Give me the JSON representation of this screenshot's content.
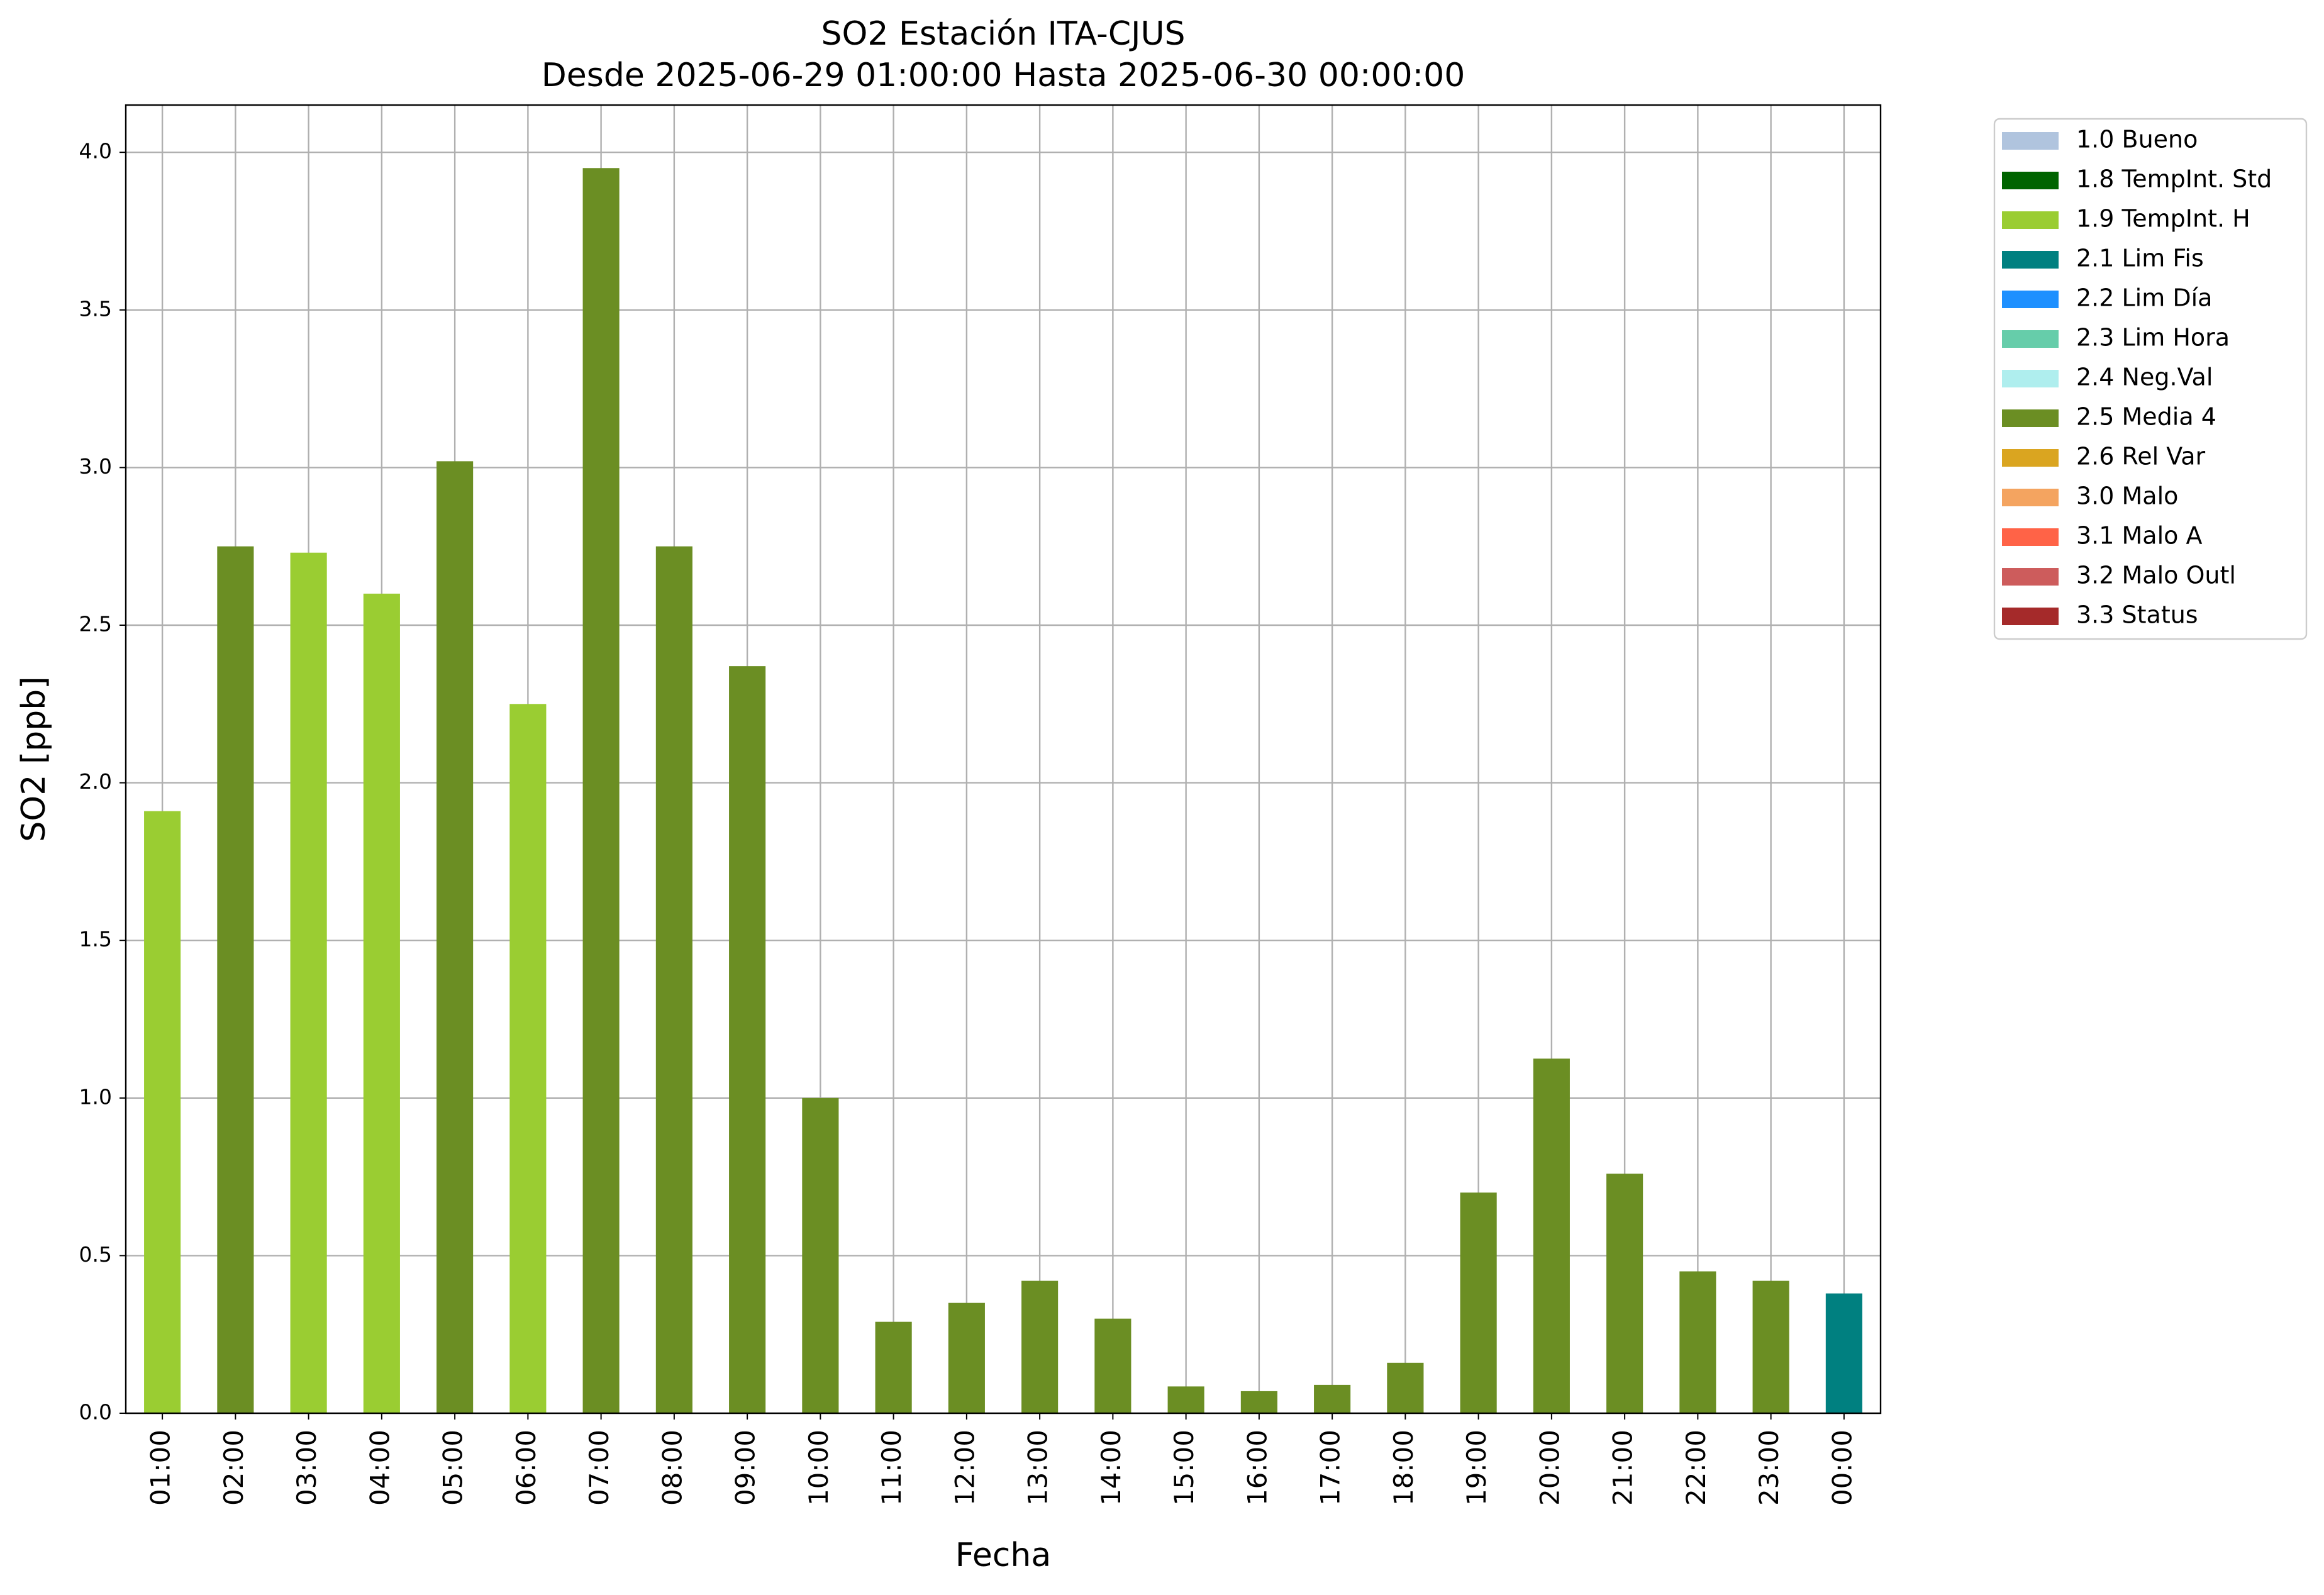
{
  "chart_data": {
    "type": "bar",
    "title": "SO2 Estación ITA-CJUS",
    "subtitle": "Desde 2025-06-29 01:00:00 Hasta 2025-06-30 00:00:00",
    "x_label": "Fecha",
    "y_label": "SO2 [ppb]",
    "categories": [
      "01:00",
      "02:00",
      "03:00",
      "04:00",
      "05:00",
      "06:00",
      "07:00",
      "08:00",
      "09:00",
      "10:00",
      "11:00",
      "12:00",
      "13:00",
      "14:00",
      "15:00",
      "16:00",
      "17:00",
      "18:00",
      "19:00",
      "20:00",
      "21:00",
      "22:00",
      "23:00",
      "00:00"
    ],
    "values": [
      1.91,
      2.75,
      2.73,
      2.6,
      3.02,
      2.25,
      3.95,
      2.75,
      2.37,
      1.0,
      0.29,
      0.35,
      0.42,
      0.3,
      0.085,
      0.07,
      0.09,
      0.16,
      0.7,
      1.125,
      0.76,
      0.45,
      0.42,
      0.38
    ],
    "colors": [
      "#9acd32",
      "#6b8e23",
      "#9acd32",
      "#9acd32",
      "#6b8e23",
      "#9acd32",
      "#6b8e23",
      "#6b8e23",
      "#6b8e23",
      "#6b8e23",
      "#6b8e23",
      "#6b8e23",
      "#6b8e23",
      "#6b8e23",
      "#6b8e23",
      "#6b8e23",
      "#6b8e23",
      "#6b8e23",
      "#6b8e23",
      "#6b8e23",
      "#6b8e23",
      "#6b8e23",
      "#6b8e23",
      "#008080"
    ],
    "legend": [
      {
        "name": "1.0 Bueno",
        "color": "#b0c4de"
      },
      {
        "name": "1.8 TempInt. Std",
        "color": "#006400"
      },
      {
        "name": "1.9 TempInt. H",
        "color": "#9acd32"
      },
      {
        "name": "2.1 Lim Fis",
        "color": "#008080"
      },
      {
        "name": "2.2 Lim Día",
        "color": "#1e90ff"
      },
      {
        "name": "2.3 Lim Hora",
        "color": "#66cdaa"
      },
      {
        "name": "2.4 Neg.Val",
        "color": "#afeeee"
      },
      {
        "name": "2.5 Media 4",
        "color": "#6b8e23"
      },
      {
        "name": "2.6 Rel Var",
        "color": "#daa520"
      },
      {
        "name": "3.0 Malo",
        "color": "#f4a460"
      },
      {
        "name": "3.1 Malo A",
        "color": "#ff6347"
      },
      {
        "name": "3.2 Malo Outl",
        "color": "#cd5c5c"
      },
      {
        "name": "3.3 Status",
        "color": "#a52a2a"
      }
    ],
    "legend_position": "outside-upper-right",
    "ylim": [
      0,
      4.15
    ],
    "yticks": [
      {
        "value": 0,
        "label": "0.0"
      },
      0.5,
      {
        "value": 1,
        "label": "1.0"
      },
      1.5,
      {
        "value": 2,
        "label": "2.0"
      },
      2.5,
      {
        "value": 3,
        "label": "3.0"
      },
      3.5,
      {
        "value": 4,
        "label": "4.0"
      }
    ],
    "grid": true
  }
}
